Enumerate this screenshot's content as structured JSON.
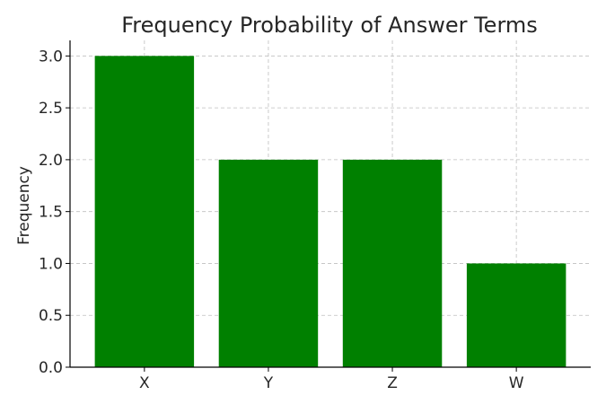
{
  "chart_data": {
    "type": "bar",
    "title": "Frequency Probability of Answer Terms",
    "xlabel": "",
    "ylabel": "Frequency",
    "categories": [
      "X",
      "Y",
      "Z",
      "W"
    ],
    "values": [
      3,
      2,
      2,
      1
    ],
    "ylim": [
      0,
      3.15
    ],
    "yticks": [
      "0.0",
      "0.5",
      "1.0",
      "1.5",
      "2.0",
      "2.5",
      "3.0"
    ],
    "bar_color": "#008000",
    "grid": true,
    "grid_style": "dashed"
  }
}
